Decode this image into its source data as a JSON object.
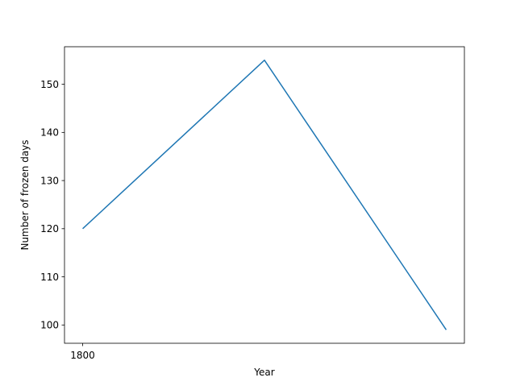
{
  "chart_data": {
    "type": "line",
    "title": "",
    "xlabel": "Year",
    "ylabel": "Number of frozen days",
    "x": [
      1800,
      1801,
      1802
    ],
    "series": [
      {
        "values": [
          120,
          155,
          99
        ],
        "color": "#1f77b4"
      }
    ],
    "x_ticks": [
      1800
    ],
    "x_tick_labels": [
      "1800"
    ],
    "y_ticks": [
      100,
      110,
      120,
      130,
      140,
      150
    ],
    "y_tick_labels": [
      "100",
      "110",
      "120",
      "130",
      "140",
      "150"
    ],
    "xlim": [
      1799.9,
      1802.1
    ],
    "ylim": [
      96.2,
      157.8
    ],
    "grid": false,
    "legend": "none"
  }
}
